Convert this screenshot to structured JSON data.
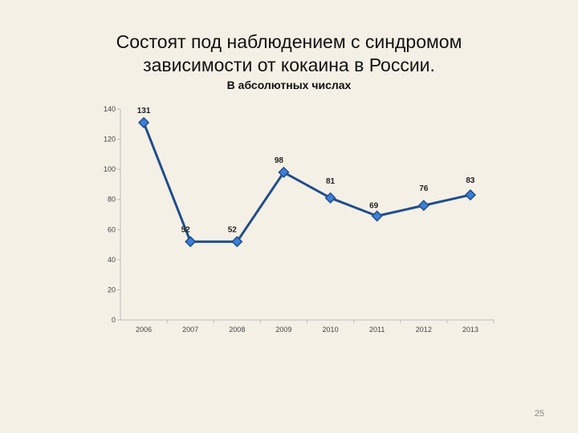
{
  "slide": {
    "title_line1": "Состоят под наблюдением с синдромом",
    "title_line2": "зависимости от кокаина в России.",
    "subtitle": "В абсолютных числах",
    "page_number": "25"
  },
  "chart_data": {
    "type": "line",
    "title": "",
    "xlabel": "",
    "ylabel": "",
    "x": [
      "2006",
      "2007",
      "2008",
      "2009",
      "2010",
      "2011",
      "2012",
      "2013"
    ],
    "values": [
      131,
      52,
      52,
      98,
      81,
      69,
      76,
      83
    ],
    "data_labels": [
      "131",
      "52",
      "52",
      "98",
      "81",
      "69",
      "76",
      "83"
    ],
    "ylim": [
      0,
      140
    ],
    "yticks": [
      0,
      20,
      40,
      60,
      80,
      100,
      120,
      140
    ],
    "grid": false,
    "legend": "none",
    "line_color": "#1f4e8c",
    "marker_color": "#3d7fd6",
    "marker": "diamond"
  }
}
